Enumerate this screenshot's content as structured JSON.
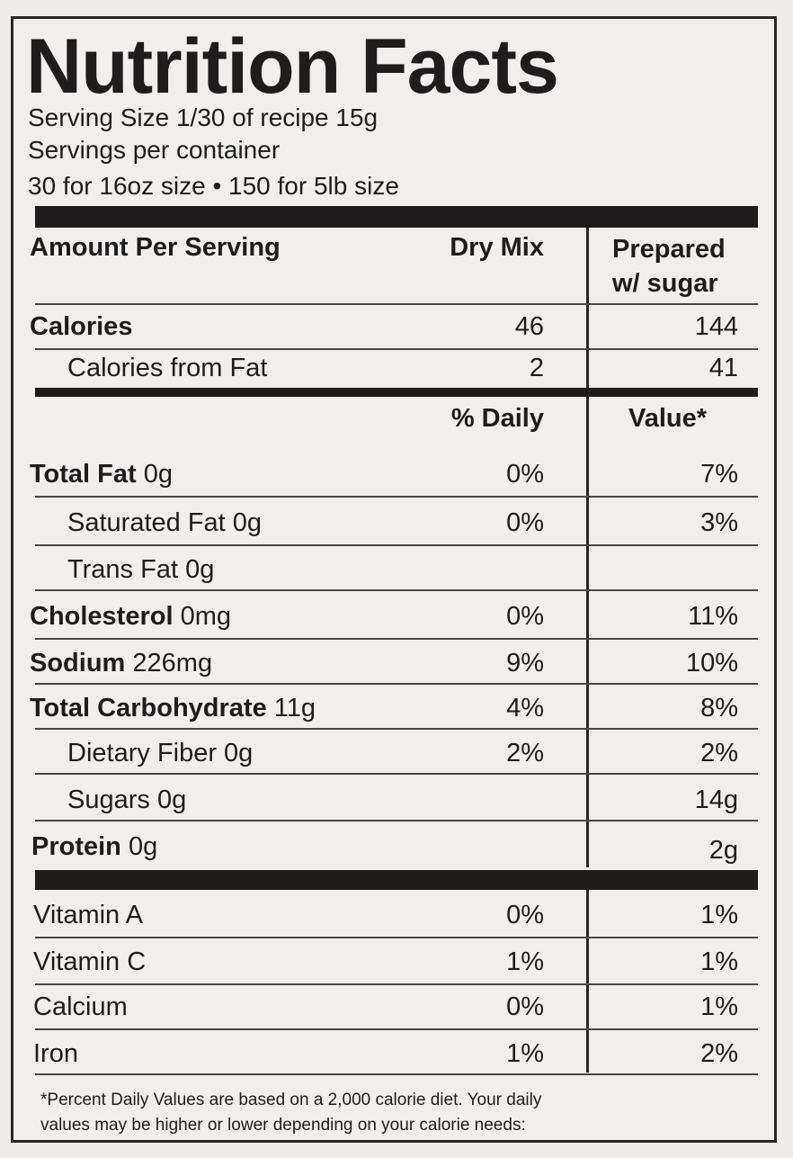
{
  "title": "Nutrition Facts",
  "serving_size": "Serving Size 1/30 of recipe 15g",
  "servings_per_container": "Servings per container",
  "servings_detail": "30 for 16oz size • 150 for 5lb size",
  "header": {
    "amount_per_serving": "Amount Per Serving",
    "dry_mix": "Dry Mix",
    "prepared_line1": "Prepared",
    "prepared_line2": "w/ sugar"
  },
  "calories": {
    "label": "Calories",
    "dry": "46",
    "prepared": "144"
  },
  "calories_from_fat": {
    "label": "Calories from Fat",
    "dry": "2",
    "prepared": "41"
  },
  "dv_header": {
    "left": "% Daily",
    "right": "Value*"
  },
  "nutrients": [
    {
      "name": "Total Fat",
      "amount": "0g",
      "dry": "0%",
      "prepared": "7%"
    },
    {
      "name": "Saturated Fat 0g",
      "amount": "",
      "dry": "0%",
      "prepared": "3%"
    },
    {
      "name": "Trans Fat 0g",
      "amount": "",
      "dry": "",
      "prepared": ""
    },
    {
      "name": "Cholesterol",
      "amount": "0mg",
      "dry": "0%",
      "prepared": "11%"
    },
    {
      "name": "Sodium",
      "amount": "226mg",
      "dry": "9%",
      "prepared": "10%"
    },
    {
      "name": "Total Carbohydrate",
      "amount": "11g",
      "dry": "4%",
      "prepared": "8%"
    },
    {
      "name": "Dietary Fiber 0g",
      "amount": "",
      "dry": "2%",
      "prepared": "2%"
    },
    {
      "name": "Sugars 0g",
      "amount": "",
      "dry": "",
      "prepared": "14g"
    },
    {
      "name": "Protein",
      "amount": "0g",
      "dry": "",
      "prepared": "2g"
    }
  ],
  "vitamins": [
    {
      "name": "Vitamin A",
      "dry": "0%",
      "prepared": "1%"
    },
    {
      "name": "Vitamin C",
      "dry": "1%",
      "prepared": "1%"
    },
    {
      "name": "Calcium",
      "dry": "0%",
      "prepared": "1%"
    },
    {
      "name": "Iron",
      "dry": "1%",
      "prepared": "2%"
    }
  ],
  "footnote_line1": "*Percent Daily Values are based on a 2,000 calorie diet. Your daily",
  "footnote_line2": "values may be higher or lower depending on your calorie needs:"
}
